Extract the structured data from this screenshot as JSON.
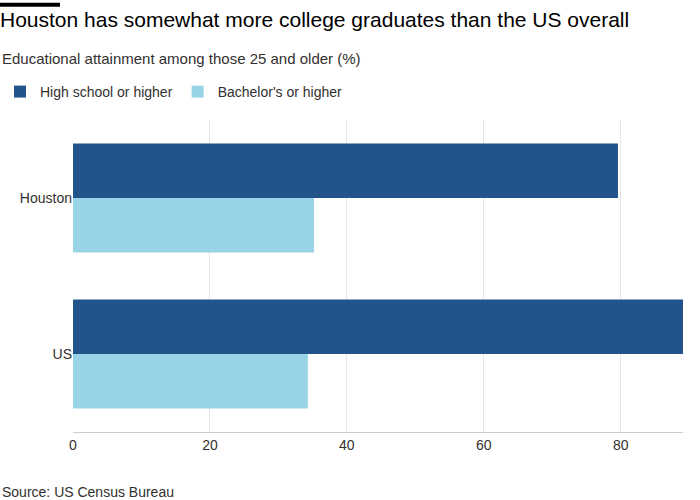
{
  "chart_data": {
    "type": "bar",
    "orientation": "horizontal",
    "title": "Houston has somewhat more college graduates than the US overall",
    "subtitle": "Educational attainment among those 25 and older (%)",
    "source": "Source: US Census Bureau",
    "categories": [
      "Houston",
      "US"
    ],
    "series": [
      {
        "name": "High school or higher",
        "color": "#22538a",
        "values": [
          79.6,
          89.1
        ]
      },
      {
        "name": "Bachelor's or higher",
        "color": "#99d4e6",
        "values": [
          35.2,
          34.3
        ]
      }
    ],
    "xlim": [
      0,
      89.1
    ],
    "xticks": [
      0,
      20,
      40,
      60,
      80
    ],
    "grid": true,
    "legend": "top-left"
  }
}
